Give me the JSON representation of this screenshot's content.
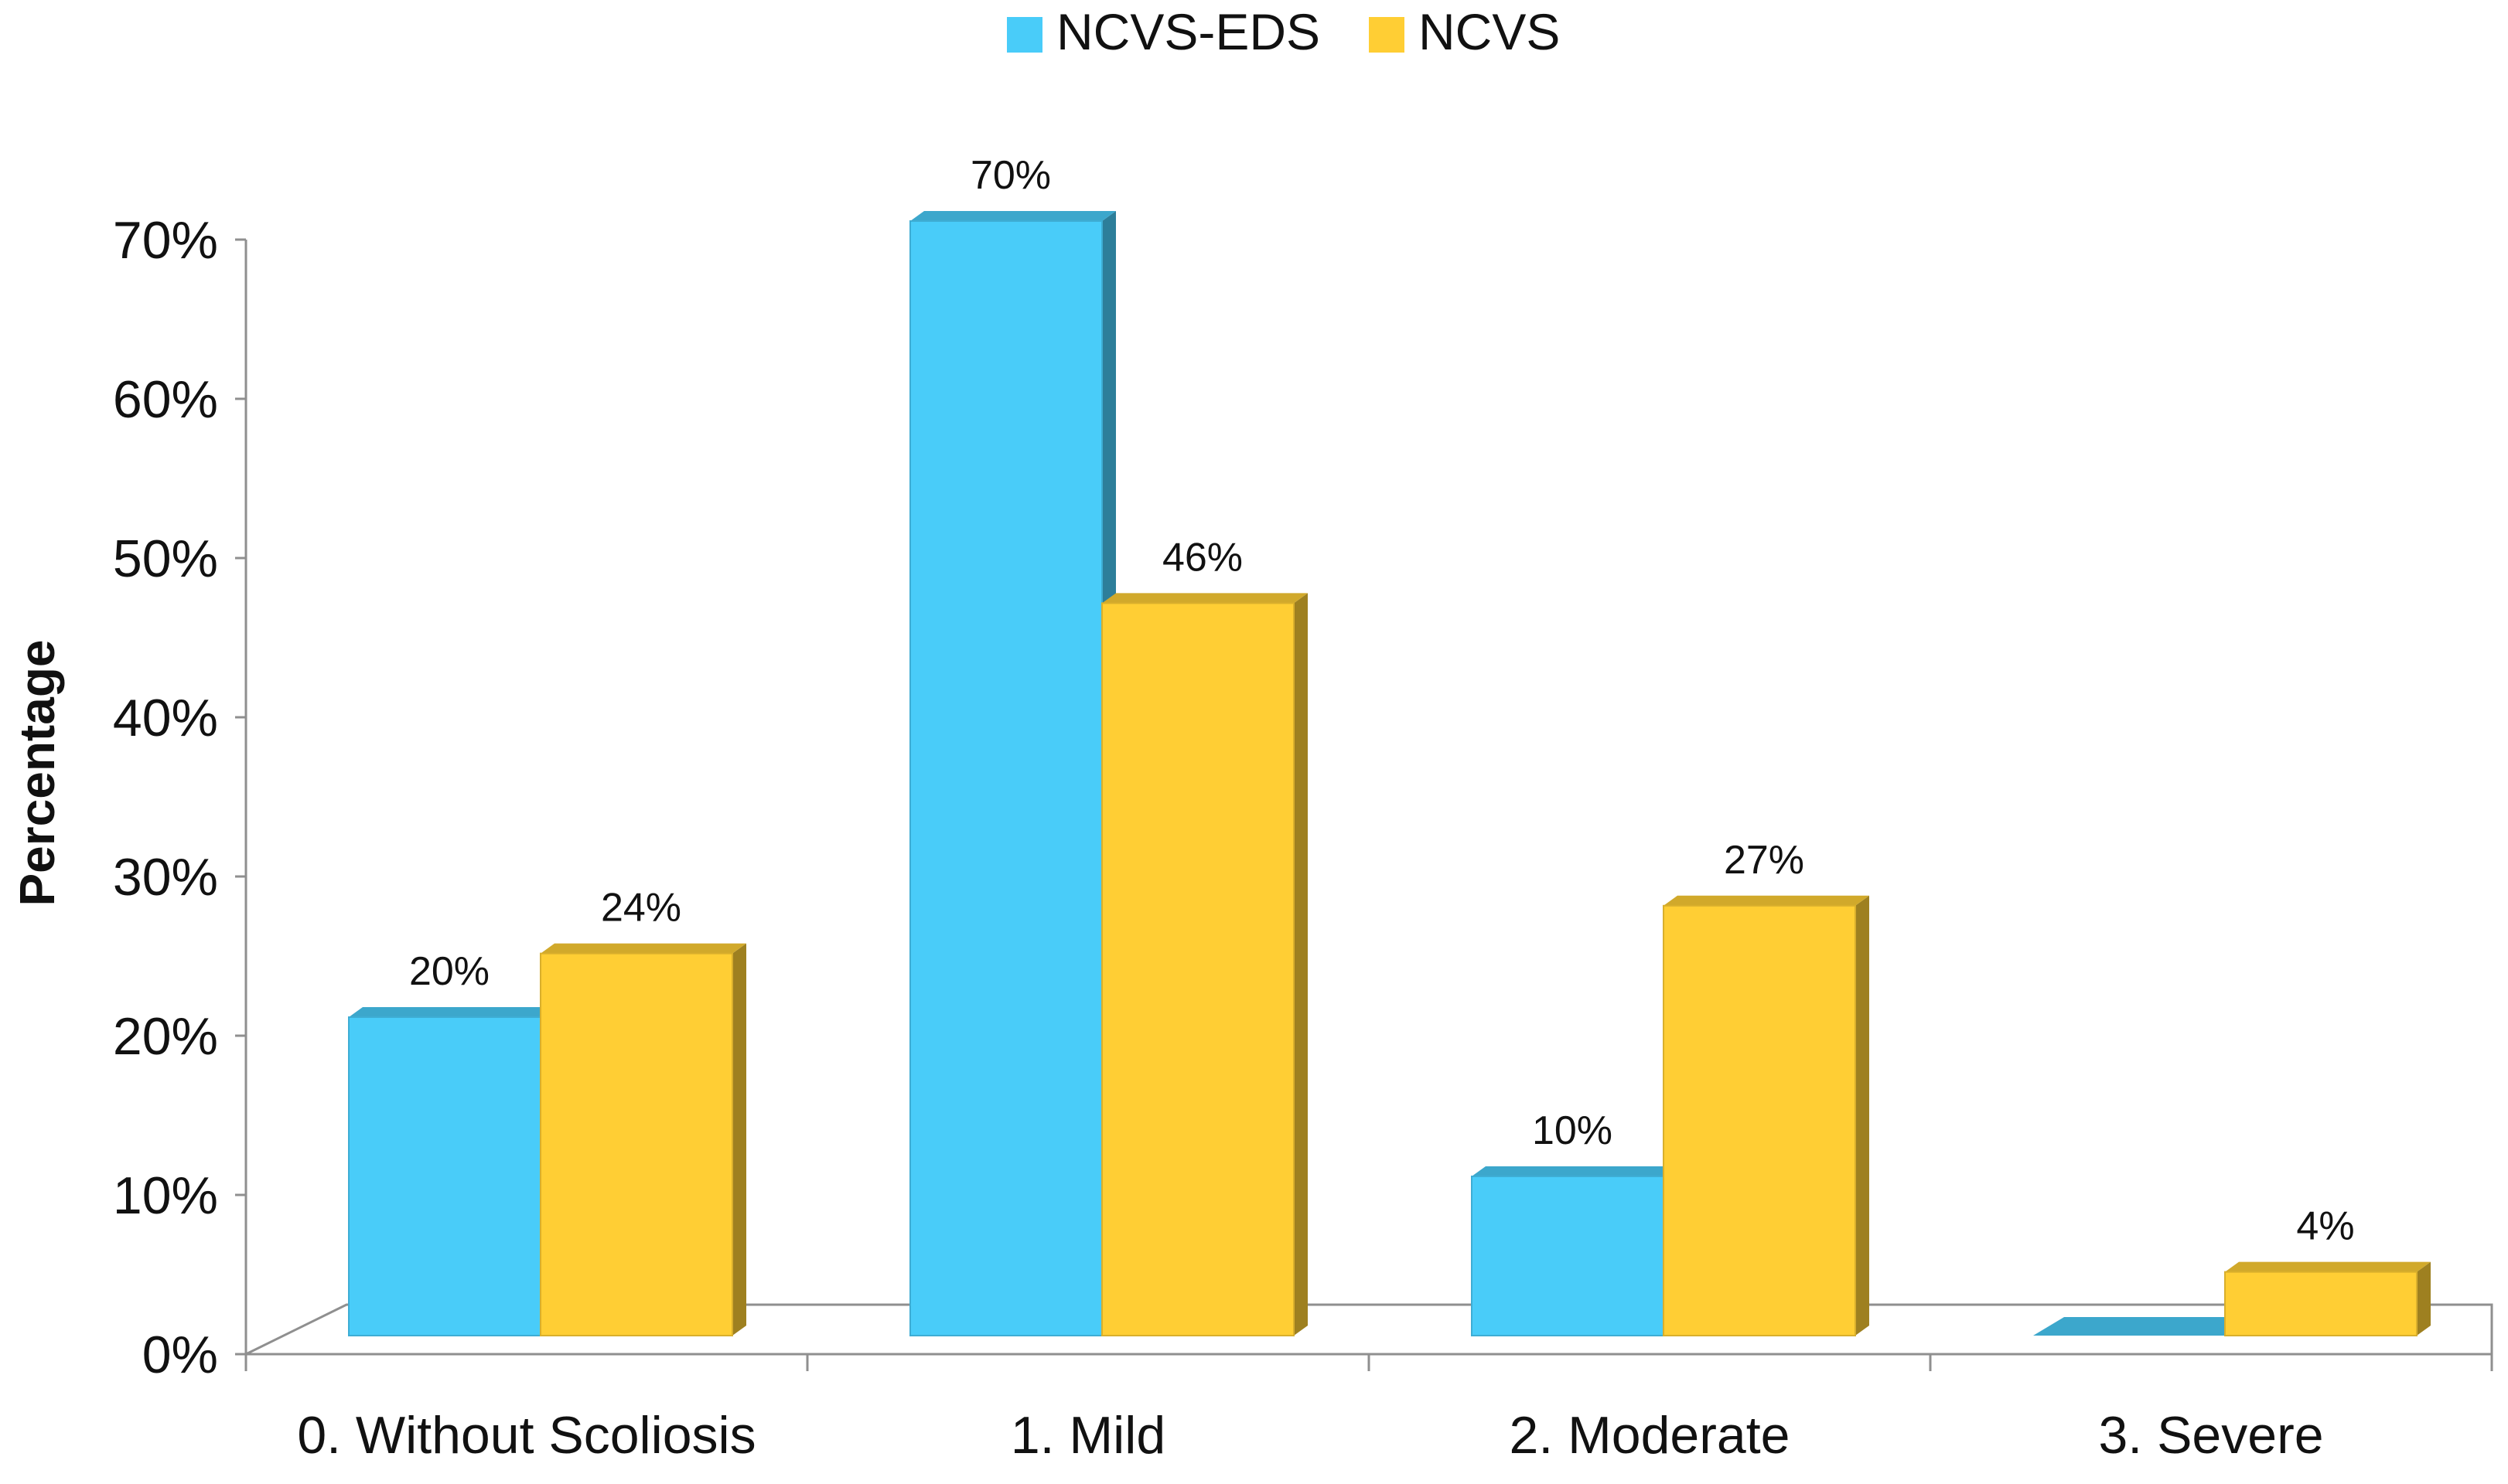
{
  "chart_data": {
    "type": "bar",
    "title": "",
    "xlabel": "",
    "ylabel": "Percentage",
    "ylim": [
      0,
      70
    ],
    "ytick_step": 10,
    "ytick_suffix": "%",
    "categories": [
      "0. Without Scoliosis",
      "1. Mild",
      "2. Moderate",
      "3. Severe"
    ],
    "series": [
      {
        "name": "NCVS-EDS",
        "color": "#49CCF9",
        "values": [
          20,
          70,
          10,
          0
        ],
        "labels": [
          "20%",
          "70%",
          "10%",
          ""
        ]
      },
      {
        "name": "NCVS",
        "color": "#FFCE34",
        "values": [
          24,
          46,
          27,
          4
        ],
        "labels": [
          "24%",
          "46%",
          "27%",
          "4%"
        ]
      }
    ],
    "legend_position": "top-center",
    "grid": false
  }
}
